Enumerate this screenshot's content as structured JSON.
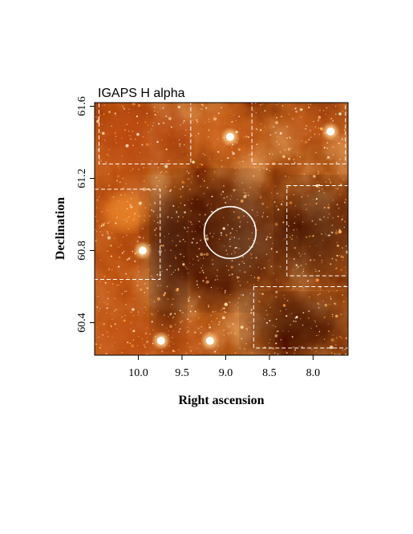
{
  "figure": {
    "panel_title": "IGAPS H alpha",
    "xlabel": "Right ascension",
    "ylabel": "Declination",
    "x_ticks": [
      "10.0",
      "9.5",
      "9.0",
      "8.5",
      "8.0"
    ],
    "y_ticks": [
      "60.4",
      "60.8",
      "61.2",
      "61.6"
    ]
  },
  "chart_data": {
    "type": "heatmap",
    "title": "IGAPS H alpha",
    "xlabel": "Right ascension",
    "ylabel": "Declination",
    "x_axis": "right ascension, decreasing to the right",
    "xlim": [
      10.5,
      7.6
    ],
    "ylim": [
      60.22,
      61.62
    ],
    "x_ticks": [
      10.0,
      9.5,
      9.0,
      8.5,
      8.0
    ],
    "y_ticks": [
      60.4,
      60.8,
      61.2,
      61.6
    ],
    "colormap": "black-red-orange-white (hot)",
    "circle": {
      "center": [
        8.95,
        60.9
      ],
      "radius_ra": 0.63,
      "color": "#ffffff",
      "style": "solid"
    },
    "dashed_boxes": [
      {
        "ra": [
          10.45,
          9.4
        ],
        "dec": [
          61.28,
          61.62
        ],
        "color": "#ffffff"
      },
      {
        "ra": [
          10.5,
          9.75
        ],
        "dec": [
          60.64,
          61.14
        ],
        "color": "#ffffff"
      },
      {
        "ra": [
          8.7,
          7.63
        ],
        "dec": [
          61.28,
          61.62
        ],
        "color": "#ffffff"
      },
      {
        "ra": [
          8.3,
          7.6
        ],
        "dec": [
          60.66,
          61.16
        ],
        "color": "#ffffff"
      },
      {
        "ra": [
          8.68,
          7.6
        ],
        "dec": [
          60.26,
          60.6
        ],
        "color": "#ffffff"
      }
    ],
    "bright_sources": [
      {
        "ra": 9.74,
        "dec": 60.3
      },
      {
        "ra": 9.18,
        "dec": 60.3
      },
      {
        "ra": 9.95,
        "dec": 60.8
      },
      {
        "ra": 8.95,
        "dec": 61.43
      },
      {
        "ra": 7.8,
        "dec": 61.46
      }
    ]
  }
}
